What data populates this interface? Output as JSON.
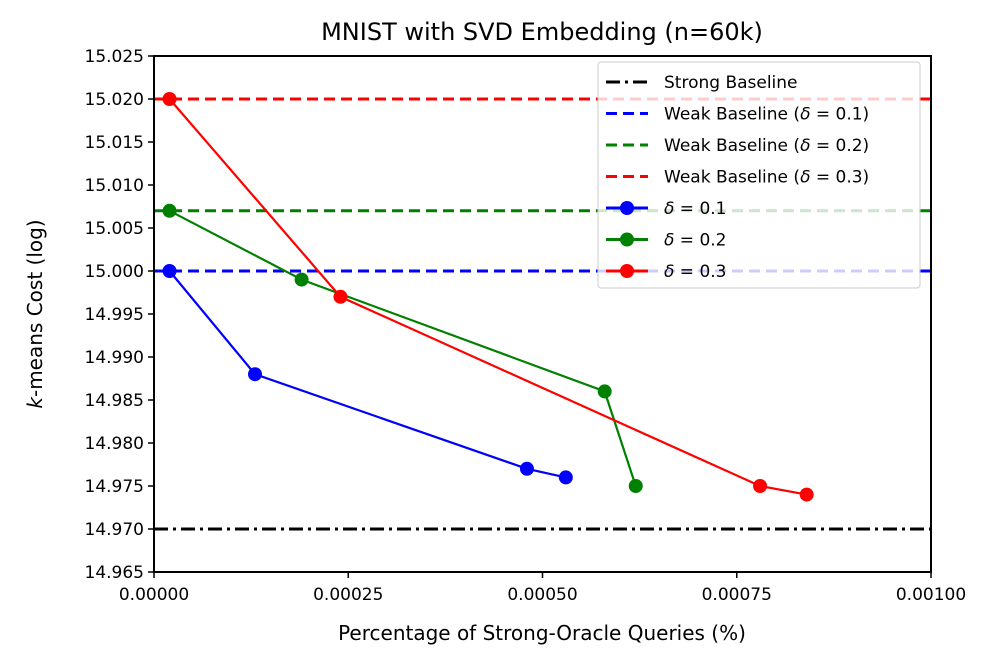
{
  "chart_data": {
    "type": "line",
    "title": "MNIST with SVD Embedding (n=60k)",
    "xlabel": "Percentage of Strong-Oracle Queries (%)",
    "ylabel_italic": "k",
    "ylabel_rest": "-means Cost (log)",
    "xlim": [
      0,
      0.001
    ],
    "ylim": [
      14.965,
      15.025
    ],
    "xticks": [
      0,
      0.00025,
      0.0005,
      0.00075,
      0.001
    ],
    "xtick_labels": [
      "0.00000",
      "0.00025",
      "0.00050",
      "0.00075",
      "0.00100"
    ],
    "yticks": [
      14.965,
      14.97,
      14.975,
      14.98,
      14.985,
      14.99,
      14.995,
      15.0,
      15.005,
      15.01,
      15.015,
      15.02,
      15.025
    ],
    "ytick_labels": [
      "14.965",
      "14.970",
      "14.975",
      "14.980",
      "14.985",
      "14.990",
      "14.995",
      "15.000",
      "15.005",
      "15.010",
      "15.015",
      "15.020",
      "15.025"
    ],
    "baselines": [
      {
        "name": "Strong Baseline",
        "y": 14.97,
        "color": "#000000",
        "style": "dashdot"
      },
      {
        "name": "Weak Baseline (δ = 0.1)",
        "y": 15.0,
        "color": "#0000ff",
        "style": "dashed"
      },
      {
        "name": "Weak Baseline (δ = 0.2)",
        "y": 15.007,
        "color": "#008000",
        "style": "dashed"
      },
      {
        "name": "Weak Baseline (δ = 0.3)",
        "y": 15.02,
        "color": "#ff0000",
        "style": "dashed"
      }
    ],
    "series": [
      {
        "name": "δ = 0.1",
        "color": "#0000ff",
        "x": [
          2e-05,
          0.00013,
          0.00048,
          0.00053
        ],
        "y": [
          15.0,
          14.988,
          14.977,
          14.976
        ]
      },
      {
        "name": "δ = 0.2",
        "color": "#008000",
        "x": [
          2e-05,
          0.00019,
          0.00058,
          0.00062
        ],
        "y": [
          15.007,
          14.999,
          14.986,
          14.975
        ]
      },
      {
        "name": "δ = 0.3",
        "color": "#ff0000",
        "x": [
          2e-05,
          0.00024,
          0.00078,
          0.00084
        ],
        "y": [
          15.02,
          14.997,
          14.975,
          14.974
        ]
      }
    ],
    "legend": {
      "placement": "top-right",
      "entries": [
        {
          "prefix": "Strong Baseline",
          "delta": "",
          "suffix": ""
        },
        {
          "prefix": "Weak Baseline (",
          "delta": "δ",
          "suffix": " = 0.1)"
        },
        {
          "prefix": "Weak Baseline (",
          "delta": "δ",
          "suffix": " = 0.2)"
        },
        {
          "prefix": "Weak Baseline (",
          "delta": "δ",
          "suffix": " = 0.3)"
        },
        {
          "prefix": "",
          "delta": "δ",
          "suffix": " = 0.1"
        },
        {
          "prefix": "",
          "delta": "δ",
          "suffix": " = 0.2"
        },
        {
          "prefix": "",
          "delta": "δ",
          "suffix": " = 0.3"
        }
      ]
    }
  }
}
